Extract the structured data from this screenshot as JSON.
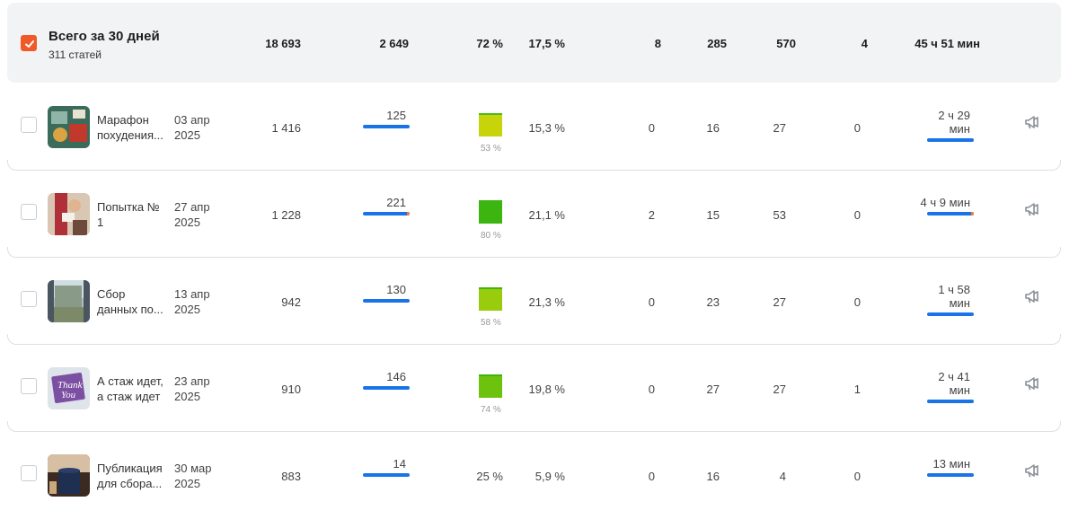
{
  "summary": {
    "title": "Всего за 30 дней",
    "subtitle": "311 статей",
    "values": [
      "18 693",
      "2 649",
      "72 %",
      "17,5 %",
      "8",
      "285",
      "570",
      "4",
      "45 ч 51 мин"
    ]
  },
  "rows": [
    {
      "title_line1": "Марафон",
      "title_line2": "похудения...",
      "date_line1": "03 апр",
      "date_line2": "2025",
      "views": "1 416",
      "reads": "125",
      "read_pct_label": "53 %",
      "read_pct_value": 53,
      "square_color_top": "#4cbb17",
      "square_color": "#c8d40a",
      "ctr": "15,3 %",
      "c1": "0",
      "c2": "16",
      "c3": "27",
      "c4": "0",
      "time": "2 ч 29 мин",
      "has_orange": false
    },
    {
      "title_line1": "Попытка №",
      "title_line2": "1",
      "date_line1": "27 апр",
      "date_line2": "2025",
      "views": "1 228",
      "reads": "221",
      "read_pct_label": "80 %",
      "read_pct_value": 80,
      "square_color_top": "#3cb511",
      "square_color": "#3cb511",
      "ctr": "21,1 %",
      "c1": "2",
      "c2": "15",
      "c3": "53",
      "c4": "0",
      "time": "4 ч 9 мин",
      "has_orange": true
    },
    {
      "title_line1": "Сбор",
      "title_line2": "данных по...",
      "date_line1": "13 апр",
      "date_line2": "2025",
      "views": "942",
      "reads": "130",
      "read_pct_label": "58 %",
      "read_pct_value": 58,
      "square_color_top": "#3cb511",
      "square_color": "#99cc0d",
      "ctr": "21,3 %",
      "c1": "0",
      "c2": "23",
      "c3": "27",
      "c4": "0",
      "time": "1 ч 58 мин",
      "has_orange": false
    },
    {
      "title_line1": "А стаж идет,",
      "title_line2": "а стаж идет",
      "date_line1": "23 апр",
      "date_line2": "2025",
      "views": "910",
      "reads": "146",
      "read_pct_label": "74 %",
      "read_pct_value": 74,
      "square_color_top": "#3cb511",
      "square_color": "#6dc20e",
      "ctr": "19,8 %",
      "c1": "0",
      "c2": "27",
      "c3": "27",
      "c4": "1",
      "time": "2 ч 41 мин",
      "has_orange": false
    },
    {
      "title_line1": "Публикация",
      "title_line2": "для сбора...",
      "date_line1": "30 мар",
      "date_line2": "2025",
      "views": "883",
      "reads": "14",
      "read_pct_text": "25 %",
      "ctr": "5,9 %",
      "c1": "0",
      "c2": "16",
      "c3": "4",
      "c4": "0",
      "time": "13 мин",
      "has_orange": false
    }
  ],
  "colors": {
    "accent": "#f05a28",
    "bar": "#1a73e8",
    "orange_tip": "#f07d36"
  },
  "icons": {
    "row_action": "megaphone-icon",
    "checkbox": "check-icon"
  }
}
